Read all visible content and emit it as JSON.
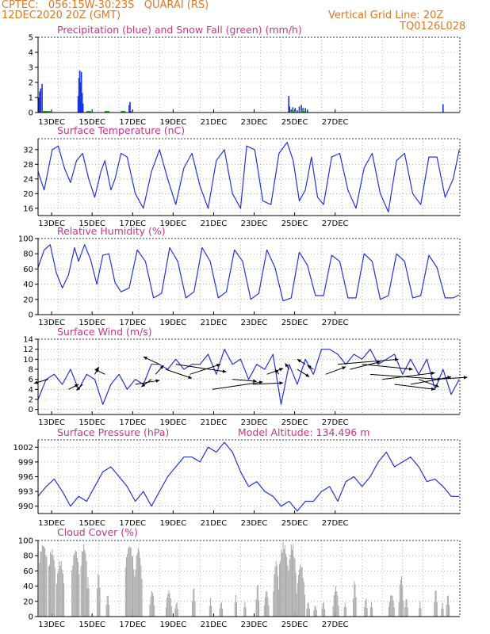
{
  "header": {
    "line1": "CPTEC:   056:15W-30:23S   QUARAI (RS)",
    "line2": "12DEC2020 20Z (GMT)",
    "grid_note": "Vertical Grid Line: 20Z",
    "code": "TQ0126L028"
  },
  "date_labels": [
    "13DEC",
    "15DEC",
    "17DEC",
    "19DEC",
    "21DEC",
    "23DEC",
    "25DEC",
    "27DEC"
  ],
  "colors": {
    "title": "#d0308a",
    "header": "#e07820",
    "line": "#2233dd",
    "precip": "#1a35e0",
    "snow": "#22aa22",
    "cloud": "#a8a8a8",
    "wind_arrow": "#000000"
  },
  "chart_data": [
    {
      "id": "precip",
      "type": "bar",
      "title": "Precipitation (blue) and Snow Fall (green) (mm/h)",
      "ylim": [
        0,
        5
      ],
      "yticks": [
        0,
        1,
        2,
        3,
        4,
        5
      ],
      "grid": true,
      "x_unit": "days since 12DEC 20Z",
      "series": [
        {
          "name": "Precipitation",
          "points": [
            [
              0.04,
              1.0
            ],
            [
              0.08,
              1.4
            ],
            [
              0.13,
              1.6
            ],
            [
              0.2,
              1.9
            ],
            [
              0.25,
              0.1
            ],
            [
              1.98,
              1.1
            ],
            [
              2.02,
              2.3
            ],
            [
              2.06,
              2.8
            ],
            [
              2.1,
              2.0
            ],
            [
              2.14,
              2.7
            ],
            [
              2.18,
              1.3
            ],
            [
              2.22,
              0.6
            ],
            [
              4.5,
              0.5
            ],
            [
              4.54,
              0.7
            ],
            [
              4.58,
              0.1
            ],
            [
              12.38,
              1.1
            ],
            [
              12.42,
              0.4
            ],
            [
              12.5,
              0.2
            ],
            [
              12.58,
              0.35
            ],
            [
              12.7,
              0.3
            ],
            [
              12.8,
              0.15
            ],
            [
              12.9,
              0.4
            ],
            [
              13.0,
              0.5
            ],
            [
              13.08,
              0.3
            ],
            [
              13.2,
              0.3
            ],
            [
              13.3,
              0.2
            ],
            [
              20.0,
              0.55
            ]
          ]
        },
        {
          "name": "Snow Fall",
          "points": []
        }
      ]
    },
    {
      "id": "temp",
      "type": "line",
      "title": "Surface Temperature (nC)",
      "ylim": [
        14,
        35
      ],
      "yticks": [
        16,
        20,
        24,
        28,
        32
      ],
      "grid": true,
      "series": [
        {
          "name": "Temperature",
          "x": [
            0,
            0.3,
            0.7,
            1.0,
            1.3,
            1.6,
            1.9,
            2.2,
            2.5,
            2.8,
            3.1,
            3.3,
            3.6,
            3.8,
            4.1,
            4.4,
            4.8,
            5.2,
            5.6,
            6.0,
            6.4,
            6.8,
            7.2,
            7.6,
            8.0,
            8.4,
            8.8,
            9.2,
            9.6,
            10.0,
            10.3,
            10.7,
            11.1,
            11.5,
            11.9,
            12.3,
            12.6,
            12.9,
            13.2,
            13.5,
            13.8,
            14.1,
            14.5,
            14.9,
            15.3,
            15.7,
            16.1,
            16.5,
            16.9,
            17.3,
            17.7,
            18.1,
            18.5,
            18.9,
            19.3,
            19.7,
            20.1,
            20.5,
            20.8
          ],
          "y": [
            26,
            21,
            32,
            33,
            27,
            23,
            29,
            31,
            24,
            19,
            26,
            29,
            21,
            24,
            31,
            30,
            20,
            16,
            26,
            32,
            24,
            17,
            27,
            31,
            22,
            16,
            29,
            32,
            20,
            16,
            33,
            32,
            18,
            17,
            31,
            34,
            29,
            18,
            21,
            30,
            19,
            17,
            30,
            31,
            21,
            16,
            27,
            31,
            20,
            15,
            29,
            31,
            20,
            17,
            30,
            30,
            19,
            24,
            32
          ]
        }
      ]
    },
    {
      "id": "rh",
      "type": "line",
      "title": "Relative Humidity (%)",
      "ylim": [
        0,
        100
      ],
      "yticks": [
        0,
        20,
        40,
        60,
        80,
        100
      ],
      "grid": true,
      "series": [
        {
          "name": "Relative Humidity",
          "x": [
            0,
            0.3,
            0.6,
            0.9,
            1.2,
            1.5,
            1.8,
            2.0,
            2.3,
            2.6,
            2.9,
            3.2,
            3.5,
            3.8,
            4.1,
            4.5,
            4.9,
            5.3,
            5.7,
            6.1,
            6.5,
            6.9,
            7.3,
            7.7,
            8.1,
            8.5,
            8.9,
            9.3,
            9.7,
            10.1,
            10.5,
            10.9,
            11.3,
            11.7,
            12.1,
            12.5,
            12.9,
            13.3,
            13.7,
            14.1,
            14.5,
            14.9,
            15.3,
            15.7,
            16.1,
            16.5,
            16.9,
            17.3,
            17.7,
            18.1,
            18.5,
            18.9,
            19.3,
            19.7,
            20.1,
            20.5,
            20.8
          ],
          "y": [
            62,
            85,
            92,
            55,
            35,
            52,
            88,
            70,
            92,
            72,
            40,
            78,
            80,
            42,
            30,
            35,
            85,
            70,
            22,
            28,
            88,
            70,
            22,
            30,
            88,
            70,
            22,
            30,
            85,
            70,
            20,
            28,
            85,
            62,
            18,
            22,
            82,
            65,
            25,
            25,
            78,
            70,
            22,
            22,
            80,
            70,
            20,
            25,
            80,
            70,
            22,
            25,
            78,
            62,
            22,
            22,
            26
          ]
        }
      ]
    },
    {
      "id": "wind",
      "type": "line",
      "title": "Surface Wind (m/s)",
      "ylim": [
        -1,
        14
      ],
      "yticks": [
        0,
        2,
        4,
        6,
        8,
        10,
        12,
        14
      ],
      "grid": true,
      "series": [
        {
          "name": "Wind speed",
          "x": [
            0,
            0.4,
            0.8,
            1.2,
            1.6,
            2.0,
            2.4,
            2.8,
            3.2,
            3.6,
            4.0,
            4.4,
            4.8,
            5.2,
            5.6,
            6.0,
            6.4,
            6.8,
            7.2,
            7.6,
            8.0,
            8.4,
            8.8,
            9.2,
            9.6,
            10.0,
            10.4,
            10.8,
            11.2,
            11.6,
            12.0,
            12.4,
            12.8,
            13.2,
            13.6,
            14.0,
            14.4,
            14.8,
            15.2,
            15.6,
            16.0,
            16.4,
            16.8,
            17.2,
            17.6,
            18.0,
            18.4,
            18.8,
            19.2,
            19.6,
            20.0,
            20.4,
            20.8
          ],
          "y": [
            2,
            6,
            7,
            5,
            8,
            4,
            7,
            6,
            1,
            5,
            7,
            4,
            6,
            5,
            9,
            9,
            8,
            10,
            8,
            9,
            9,
            11,
            7,
            12,
            9,
            10,
            6,
            9,
            8,
            11,
            1,
            9,
            5,
            10,
            7,
            12,
            12,
            11,
            9,
            11,
            10,
            12,
            9,
            10,
            11,
            7,
            10,
            7,
            10,
            4,
            8,
            3,
            6
          ]
        }
      ],
      "arrows": [
        [
          0.5,
          6,
          -0.7,
          -0.8
        ],
        [
          1.5,
          4,
          0.5,
          1.0
        ],
        [
          2.2,
          5,
          -0.3,
          -1.2
        ],
        [
          2.8,
          7,
          0.2,
          1.5
        ],
        [
          3.3,
          7,
          -0.5,
          1.0
        ],
        [
          4.8,
          5,
          1.2,
          0.8
        ],
        [
          5.6,
          6,
          -0.5,
          -1.5
        ],
        [
          5.8,
          7,
          0.4,
          1.8
        ],
        [
          6.0,
          9,
          -0.8,
          1.5
        ],
        [
          6.3,
          8,
          1.3,
          -1.8
        ],
        [
          6.8,
          9,
          2.5,
          -1.5
        ],
        [
          7.5,
          7,
          1.5,
          2.0
        ],
        [
          8.6,
          4,
          2.5,
          1.5
        ],
        [
          9.6,
          6,
          1.2,
          -0.4
        ],
        [
          10.6,
          5,
          1.5,
          0.3
        ],
        [
          11.3,
          7,
          0.8,
          1.2
        ],
        [
          11.9,
          7,
          -0.2,
          1.0
        ],
        [
          12.4,
          8,
          -0.2,
          1.2
        ],
        [
          12.8,
          8,
          0.6,
          -1.5
        ],
        [
          13.2,
          9,
          -0.4,
          1.0
        ],
        [
          13.6,
          8,
          -0.3,
          0.8
        ],
        [
          14.2,
          7,
          1.0,
          1.5
        ],
        [
          14.8,
          9,
          3.0,
          1.0
        ],
        [
          15.4,
          8,
          1.5,
          1.5
        ],
        [
          16.0,
          9,
          2.5,
          -1.0
        ],
        [
          16.4,
          7,
          3.5,
          -1.0
        ],
        [
          17.0,
          6,
          2.6,
          1.3
        ],
        [
          17.6,
          5,
          2.0,
          -1.0
        ],
        [
          18.4,
          5,
          2.0,
          1.5
        ],
        [
          18.8,
          6,
          1.0,
          -1.5
        ],
        [
          19.6,
          6,
          1.6,
          0.4
        ]
      ]
    },
    {
      "id": "pressure",
      "type": "line",
      "title": "Surface Pressure (hPa)",
      "subtitle": "Model Altitude: 134.496 m",
      "ylim": [
        988.5,
        1003.5
      ],
      "yticks": [
        990,
        993,
        996,
        999,
        1002
      ],
      "grid": true,
      "series": [
        {
          "name": "Pressure",
          "x": [
            0,
            0.4,
            0.8,
            1.2,
            1.6,
            2.0,
            2.4,
            2.8,
            3.2,
            3.6,
            4.0,
            4.4,
            4.8,
            5.2,
            5.6,
            6.0,
            6.4,
            6.8,
            7.2,
            7.6,
            8.0,
            8.4,
            8.8,
            9.2,
            9.6,
            10.0,
            10.4,
            10.8,
            11.2,
            11.6,
            12.0,
            12.4,
            12.8,
            13.2,
            13.6,
            14.0,
            14.4,
            14.8,
            15.2,
            15.6,
            16.0,
            16.4,
            16.8,
            17.2,
            17.6,
            18.0,
            18.4,
            18.8,
            19.2,
            19.6,
            20.0,
            20.4,
            20.8
          ],
          "y": [
            992,
            994,
            995.5,
            993,
            990,
            992,
            991,
            994,
            997,
            998,
            996,
            994,
            991,
            993,
            990,
            993,
            996,
            998,
            1000,
            1000,
            999,
            1002,
            1001,
            1003,
            1001,
            997,
            994,
            995,
            993,
            992,
            990,
            991,
            989,
            991,
            991,
            993,
            994,
            991,
            995,
            996,
            994,
            996,
            999,
            1001,
            998,
            999,
            1000,
            998,
            995,
            995.5,
            994,
            992,
            992
          ]
        }
      ]
    },
    {
      "id": "cloud",
      "type": "bar",
      "title": "Cloud Cover (%)",
      "ylim": [
        0,
        100
      ],
      "yticks": [
        0,
        20,
        40,
        60,
        80,
        100
      ],
      "grid": true,
      "series": [
        {
          "name": "Cloud Cover",
          "blocks": [
            [
              0.05,
              0.45,
              97,
              75
            ],
            [
              0.5,
              0.85,
              90,
              60
            ],
            [
              0.9,
              1.3,
              75,
              40
            ],
            [
              1.65,
              2.05,
              90,
              55
            ],
            [
              2.1,
              2.4,
              96,
              70
            ],
            [
              2.4,
              2.55,
              55,
              20
            ],
            [
              2.9,
              3.1,
              60,
              25
            ],
            [
              3.35,
              3.55,
              30,
              8
            ],
            [
              4.3,
              4.75,
              96,
              65
            ],
            [
              4.75,
              5.15,
              92,
              45
            ],
            [
              5.5,
              5.75,
              35,
              10
            ],
            [
              6.3,
              6.6,
              35,
              8
            ],
            [
              6.75,
              6.95,
              20,
              5
            ],
            [
              7.6,
              7.8,
              40,
              10
            ],
            [
              8.45,
              8.6,
              25,
              5
            ],
            [
              8.95,
              9.15,
              20,
              5
            ],
            [
              9.7,
              9.85,
              30,
              8
            ],
            [
              10.15,
              10.3,
              20,
              5
            ],
            [
              10.75,
              10.95,
              45,
              10
            ],
            [
              11.15,
              11.4,
              35,
              8
            ],
            [
              11.6,
              11.9,
              75,
              25
            ],
            [
              11.9,
              12.35,
              98,
              65
            ],
            [
              12.35,
              12.75,
              98,
              55
            ],
            [
              12.75,
              13.2,
              70,
              25
            ],
            [
              13.25,
              13.45,
              20,
              5
            ],
            [
              13.6,
              13.8,
              15,
              5
            ],
            [
              14.0,
              14.2,
              20,
              5
            ],
            [
              14.55,
              14.85,
              40,
              8
            ],
            [
              15.1,
              15.25,
              20,
              5
            ],
            [
              15.55,
              15.75,
              50,
              10
            ],
            [
              16.1,
              16.3,
              25,
              5
            ],
            [
              16.4,
              16.55,
              20,
              5
            ],
            [
              17.3,
              17.6,
              30,
              8
            ],
            [
              17.8,
              18.05,
              55,
              10
            ],
            [
              18.1,
              18.3,
              25,
              5
            ],
            [
              18.8,
              18.95,
              20,
              5
            ],
            [
              19.55,
              19.75,
              38,
              8
            ],
            [
              19.9,
              20.05,
              18,
              5
            ],
            [
              20.15,
              20.35,
              30,
              8
            ]
          ]
        }
      ]
    }
  ]
}
